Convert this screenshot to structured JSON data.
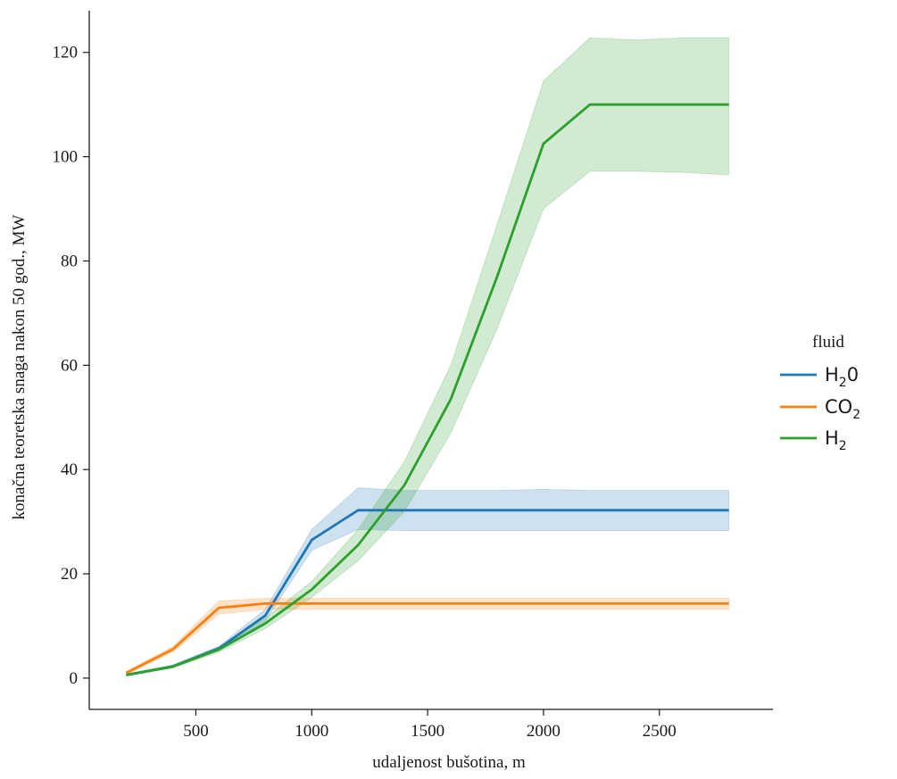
{
  "chart_data": {
    "type": "line",
    "title": "",
    "xlabel": "udaljenost bušotina, m",
    "ylabel": "konačna teoretska snaga nakon 50 god., MW",
    "xlim": [
      40,
      2990
    ],
    "ylim": [
      -6,
      128
    ],
    "xticks": [
      500,
      1000,
      1500,
      2000,
      2500
    ],
    "yticks": [
      0,
      20,
      40,
      60,
      80,
      100,
      120
    ],
    "grid": false,
    "legend": {
      "title": "fluid",
      "placement": "right, outside plot",
      "entries": [
        {
          "base": "H",
          "sub": "2",
          "tail": "0"
        },
        {
          "base": "CO",
          "sub": "2",
          "tail": ""
        },
        {
          "base": "H",
          "sub": "2",
          "tail": ""
        }
      ]
    },
    "x": [
      200,
      400,
      600,
      800,
      1000,
      1200,
      1400,
      1600,
      1800,
      2000,
      2200,
      2400,
      2600,
      2800
    ],
    "series": [
      {
        "name": "H2O",
        "color": "#1f77b4",
        "values": [
          0.6,
          2.2,
          5.7,
          12.0,
          26.5,
          32.2,
          32.2,
          32.2,
          32.2,
          32.2,
          32.2,
          32.2,
          32.2,
          32.2
        ],
        "lower": [
          0.4,
          2.0,
          5.3,
          11.0,
          24.5,
          28.5,
          28.3,
          28.3,
          28.3,
          28.3,
          28.3,
          28.3,
          28.3,
          28.3
        ],
        "upper": [
          0.8,
          2.5,
          6.1,
          13.2,
          28.5,
          36.5,
          36.0,
          36.0,
          36.0,
          36.2,
          36.0,
          36.0,
          36.0,
          36.0
        ]
      },
      {
        "name": "CO2",
        "color": "#ff7f0e",
        "values": [
          1.0,
          5.5,
          13.5,
          14.3,
          14.3,
          14.3,
          14.3,
          14.3,
          14.3,
          14.3,
          14.3,
          14.3,
          14.3,
          14.3
        ],
        "lower": [
          0.7,
          5.0,
          12.3,
          13.2,
          13.2,
          13.2,
          13.2,
          13.2,
          13.2,
          13.2,
          13.2,
          13.2,
          13.2,
          13.2
        ],
        "upper": [
          1.3,
          6.0,
          14.8,
          15.3,
          15.3,
          15.3,
          15.3,
          15.3,
          15.3,
          15.3,
          15.3,
          15.3,
          15.3,
          15.3
        ]
      },
      {
        "name": "H2",
        "color": "#2ca02c",
        "values": [
          0.6,
          2.2,
          5.5,
          10.5,
          17.0,
          25.5,
          37.0,
          53.5,
          77.0,
          102.5,
          110.0,
          110.0,
          110.0,
          110.0
        ],
        "lower": [
          0.4,
          2.0,
          5.0,
          9.5,
          15.5,
          22.5,
          32.0,
          47.0,
          67.0,
          90.0,
          97.2,
          97.2,
          97.0,
          96.5
        ],
        "upper": [
          0.8,
          2.5,
          6.0,
          11.5,
          18.5,
          28.5,
          41.5,
          60.0,
          87.0,
          114.5,
          122.8,
          122.4,
          122.8,
          122.8
        ]
      }
    ]
  }
}
